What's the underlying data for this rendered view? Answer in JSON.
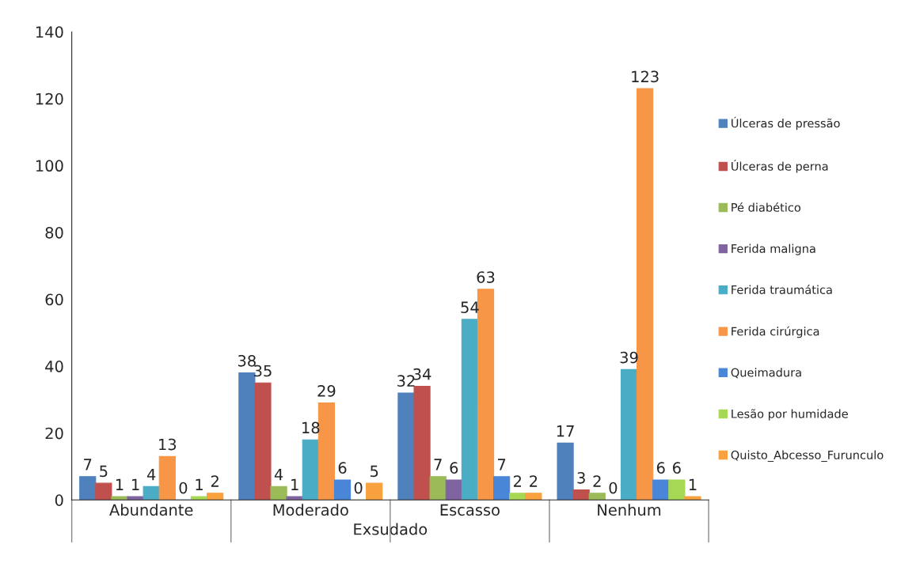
{
  "chart_data": {
    "type": "bar",
    "xlabel": "Exsudado",
    "categories": [
      "Abundante",
      "Moderado",
      "Escasso",
      "Nenhum"
    ],
    "series": [
      {
        "name": "Úlceras de pressão",
        "color": "#4f81bd",
        "values": [
          7,
          38,
          32,
          17
        ]
      },
      {
        "name": "Úlceras de perna",
        "color": "#c0504d",
        "values": [
          5,
          35,
          34,
          3
        ]
      },
      {
        "name": "Pé diabético",
        "color": "#9bbb59",
        "values": [
          1,
          4,
          7,
          2
        ]
      },
      {
        "name": "Ferida maligna",
        "color": "#8064a2",
        "values": [
          1,
          1,
          6,
          0
        ]
      },
      {
        "name": "Ferida traumática",
        "color": "#4bacc6",
        "values": [
          4,
          18,
          54,
          39
        ]
      },
      {
        "name": "Ferida cirúrgica",
        "color": "#f79646",
        "values": [
          13,
          29,
          63,
          123
        ]
      },
      {
        "name": "Queimadura",
        "color": "#4a86d8",
        "values": [
          0,
          6,
          7,
          6
        ]
      },
      {
        "name": "Lesão por humidade",
        "color": "#a6d854",
        "values": [
          1,
          0,
          2,
          6
        ]
      },
      {
        "name": "Quisto_Abcesso_Furunculo",
        "color": "#f9a03f",
        "values": [
          2,
          5,
          2,
          1
        ]
      }
    ],
    "ylim": [
      0,
      140
    ],
    "yticks": [
      0,
      20,
      40,
      60,
      80,
      100,
      120,
      140
    ],
    "data_labels": true,
    "grid": false,
    "legend": "right"
  }
}
